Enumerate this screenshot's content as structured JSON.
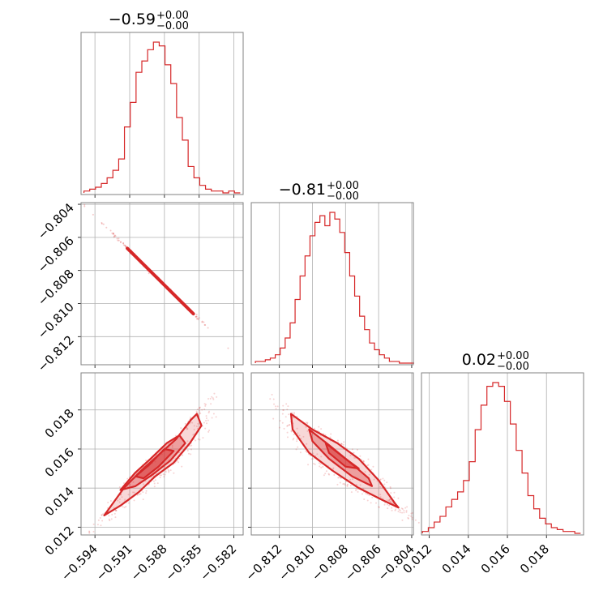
{
  "figure": {
    "background": "#ffffff",
    "accent_color": "#d62728",
    "grid": true
  },
  "chart_data": [
    {
      "type": "histogram",
      "id": "hist_p0",
      "title": {
        "value": "−0.59",
        "upper": "+0.00",
        "lower": "−0.00"
      },
      "x_range": [
        -0.5952,
        -0.5812
      ],
      "xticks": [
        -0.594,
        -0.591,
        -0.588,
        -0.585,
        -0.582
      ],
      "bin_centers": [
        -0.5947,
        -0.5942,
        -0.5937,
        -0.5932,
        -0.5927,
        -0.5922,
        -0.5917,
        -0.5912,
        -0.5907,
        -0.5902,
        -0.5897,
        -0.5892,
        -0.5887,
        -0.5882,
        -0.5877,
        -0.5872,
        -0.5867,
        -0.5862,
        -0.5857,
        -0.5852,
        -0.5847,
        -0.5842,
        -0.5837,
        -0.5832,
        -0.5827,
        -0.5822,
        -0.5817
      ],
      "counts": [
        1,
        2,
        3,
        5,
        8,
        12,
        18,
        35,
        48,
        64,
        70,
        76,
        80,
        78,
        68,
        58,
        40,
        28,
        14,
        8,
        4,
        2,
        1,
        1,
        0,
        1,
        0
      ]
    },
    {
      "type": "histogram",
      "id": "hist_p1",
      "title": {
        "value": "−0.81",
        "upper": "+0.00",
        "lower": "−0.00"
      },
      "x_range": [
        -0.8137,
        -0.8039
      ],
      "xticks": [
        -0.812,
        -0.81,
        -0.808,
        -0.806,
        -0.804
      ],
      "bin_centers": [
        -0.8133,
        -0.813,
        -0.8127,
        -0.8124,
        -0.8121,
        -0.8118,
        -0.8115,
        -0.8112,
        -0.8109,
        -0.8106,
        -0.8103,
        -0.81,
        -0.8097,
        -0.8094,
        -0.8091,
        -0.8088,
        -0.8085,
        -0.8082,
        -0.8079,
        -0.8076,
        -0.8073,
        -0.807,
        -0.8067,
        -0.8064,
        -0.8061,
        -0.8058,
        -0.8055,
        -0.8052,
        -0.8049,
        -0.8046,
        -0.8043,
        -0.804
      ],
      "counts": [
        1,
        1,
        2,
        3,
        5,
        9,
        15,
        24,
        38,
        52,
        64,
        76,
        84,
        88,
        82,
        90,
        86,
        78,
        66,
        52,
        40,
        28,
        20,
        12,
        8,
        5,
        3,
        1,
        1,
        0,
        0,
        0
      ]
    },
    {
      "type": "histogram",
      "id": "hist_p2",
      "title": {
        "value": "0.02",
        "upper": "+0.00",
        "lower": "−0.00"
      },
      "x_range": [
        0.0116,
        0.0199
      ],
      "xticks": [
        0.012,
        0.014,
        0.016,
        0.018
      ],
      "bin_centers": [
        0.0118,
        0.0121,
        0.0124,
        0.0127,
        0.013,
        0.0133,
        0.0136,
        0.0139,
        0.0142,
        0.0145,
        0.0148,
        0.0151,
        0.0154,
        0.0157,
        0.016,
        0.0163,
        0.0166,
        0.0169,
        0.0172,
        0.0175,
        0.0178,
        0.0181,
        0.0184,
        0.0187,
        0.019,
        0.0193,
        0.0196
      ],
      "counts": [
        1,
        3,
        6,
        9,
        14,
        18,
        22,
        28,
        38,
        55,
        68,
        78,
        80,
        78,
        70,
        58,
        44,
        32,
        20,
        13,
        8,
        5,
        3,
        2,
        1,
        1,
        0
      ]
    },
    {
      "type": "scatter_contour",
      "id": "joint_p0_p1",
      "x_range": [
        -0.5952,
        -0.5812
      ],
      "y_range": [
        -0.8137,
        -0.8039
      ],
      "xticks": [
        -0.594,
        -0.591,
        -0.588,
        -0.585,
        -0.582
      ],
      "yticks": [
        -0.804,
        -0.806,
        -0.808,
        -0.81,
        -0.812
      ],
      "line": {
        "x": [
          -0.5949,
          -0.5825
        ],
        "y": [
          -0.8041,
          -0.8127
        ]
      }
    },
    {
      "type": "scatter_contour",
      "id": "joint_p0_p2",
      "x_range": [
        -0.5952,
        -0.5812
      ],
      "y_range": [
        0.0116,
        0.0199
      ],
      "xticks": [
        -0.594,
        -0.591,
        -0.588,
        -0.585,
        -0.582
      ],
      "yticks": [
        0.012,
        0.014,
        0.016,
        0.018
      ],
      "xtick_labels": [
        "−0.594",
        "−0.591",
        "−0.588",
        "−0.585",
        "−0.582"
      ],
      "ytick_labels": [
        "0.012",
        "0.014",
        "0.016",
        "0.018"
      ],
      "contours": [
        [
          [
            -0.5932,
            0.0126
          ],
          [
            -0.5915,
            0.014
          ],
          [
            -0.59,
            0.0149
          ],
          [
            -0.5885,
            0.0157
          ],
          [
            -0.587,
            0.0165
          ],
          [
            -0.5857,
            0.0175
          ],
          [
            -0.5852,
            0.0178
          ],
          [
            -0.5848,
            0.0172
          ],
          [
            -0.5858,
            0.0163
          ],
          [
            -0.5872,
            0.0153
          ],
          [
            -0.5888,
            0.0146
          ],
          [
            -0.5902,
            0.0138
          ],
          [
            -0.5918,
            0.0131
          ],
          [
            -0.5932,
            0.0126
          ]
        ],
        [
          [
            -0.5918,
            0.0139
          ],
          [
            -0.5905,
            0.0148
          ],
          [
            -0.5892,
            0.0155
          ],
          [
            -0.5878,
            0.0163
          ],
          [
            -0.5867,
            0.0167
          ],
          [
            -0.5862,
            0.0163
          ],
          [
            -0.5875,
            0.0154
          ],
          [
            -0.589,
            0.0147
          ],
          [
            -0.5905,
            0.0141
          ],
          [
            -0.5918,
            0.0139
          ]
        ],
        [
          [
            -0.5905,
            0.0146
          ],
          [
            -0.5893,
            0.0152
          ],
          [
            -0.588,
            0.016
          ],
          [
            -0.5872,
            0.0159
          ],
          [
            -0.5885,
            0.0151
          ],
          [
            -0.5898,
            0.0145
          ],
          [
            -0.5905,
            0.0146
          ]
        ]
      ]
    },
    {
      "type": "scatter_contour",
      "id": "joint_p1_p2",
      "x_range": [
        -0.8137,
        -0.8039
      ],
      "y_range": [
        0.0116,
        0.0199
      ],
      "xticks": [
        -0.812,
        -0.81,
        -0.808,
        -0.806,
        -0.804
      ],
      "xtick_labels": [
        "−0.812",
        "−0.810",
        "−0.808",
        "−0.806",
        "−0.804"
      ],
      "contours": [
        [
          [
            -0.8113,
            0.0178
          ],
          [
            -0.81,
            0.017
          ],
          [
            -0.8085,
            0.0163
          ],
          [
            -0.8072,
            0.0155
          ],
          [
            -0.806,
            0.0144
          ],
          [
            -0.805,
            0.0132
          ],
          [
            -0.8048,
            0.013
          ],
          [
            -0.8058,
            0.0134
          ],
          [
            -0.8072,
            0.014
          ],
          [
            -0.8088,
            0.0149
          ],
          [
            -0.8102,
            0.0158
          ],
          [
            -0.8112,
            0.017
          ],
          [
            -0.8113,
            0.0178
          ]
        ],
        [
          [
            -0.8102,
            0.017
          ],
          [
            -0.809,
            0.0162
          ],
          [
            -0.8077,
            0.0153
          ],
          [
            -0.8066,
            0.0145
          ],
          [
            -0.8064,
            0.0141
          ],
          [
            -0.8076,
            0.0146
          ],
          [
            -0.809,
            0.0155
          ],
          [
            -0.81,
            0.0164
          ],
          [
            -0.8102,
            0.017
          ]
        ],
        [
          [
            -0.8092,
            0.0163
          ],
          [
            -0.808,
            0.0155
          ],
          [
            -0.8072,
            0.015
          ],
          [
            -0.808,
            0.0151
          ],
          [
            -0.809,
            0.0158
          ],
          [
            -0.8092,
            0.0163
          ]
        ]
      ]
    },
    {
      "type": "histogram_axis",
      "id": "xaxis_p2",
      "xticks": [
        0.012,
        0.014,
        0.016,
        0.018
      ],
      "xtick_labels": [
        "0.012",
        "0.014",
        "0.016",
        "0.018"
      ]
    },
    {
      "type": "axis_labels",
      "id": "yaxis_p1",
      "ytick_labels": [
        "−0.804",
        "−0.806",
        "−0.808",
        "−0.810",
        "−0.812"
      ]
    }
  ]
}
